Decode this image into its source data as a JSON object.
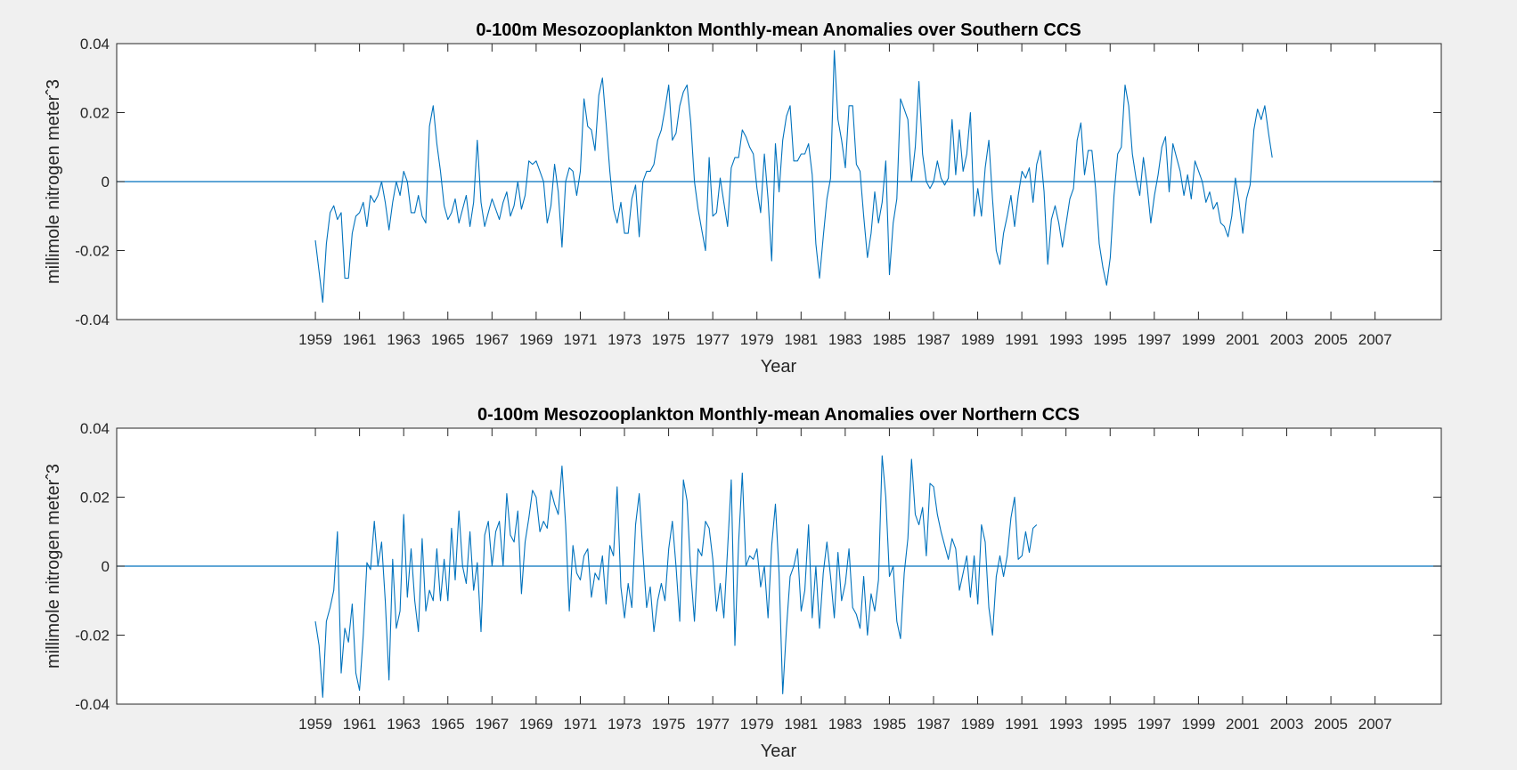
{
  "figure": {
    "background": "#f0f0f0",
    "axes_background": "#ffffff",
    "line_color": "#0072bd"
  },
  "chart_data": [
    {
      "type": "line",
      "title": "0-100m Mesozooplankton Monthly-mean Anomalies over Southern CCS",
      "xlabel": "Year",
      "ylabel": "millimole nitrogen meterˆ3",
      "xlim": [
        1950,
        2010
      ],
      "ylim": [
        -0.04,
        0.04
      ],
      "xticks": [
        1959,
        1961,
        1963,
        1965,
        1967,
        1969,
        1971,
        1973,
        1975,
        1977,
        1979,
        1981,
        1983,
        1985,
        1987,
        1989,
        1991,
        1993,
        1995,
        1997,
        1999,
        2001,
        2003,
        2005,
        2007
      ],
      "yticks": [
        -0.04,
        -0.02,
        0,
        0.02,
        0.04
      ],
      "ytick_labels": [
        "-0.04",
        "-0.02",
        "0",
        "0.02",
        "0.04"
      ],
      "reference_line": 0,
      "grid": false,
      "series": [
        {
          "x_start": 1959.0,
          "x_step": 0.1667,
          "y": [
            -0.017,
            -0.026,
            -0.035,
            -0.018,
            -0.009,
            -0.007,
            -0.011,
            -0.009,
            -0.028,
            -0.028,
            -0.015,
            -0.01,
            -0.009,
            -0.006,
            -0.013,
            -0.004,
            -0.006,
            -0.004,
            0.0,
            -0.006,
            -0.014,
            -0.006,
            0.0,
            -0.004,
            0.003,
            0.0,
            -0.009,
            -0.009,
            -0.004,
            -0.01,
            -0.012,
            0.016,
            0.022,
            0.011,
            0.003,
            -0.007,
            -0.011,
            -0.009,
            -0.005,
            -0.012,
            -0.008,
            -0.004,
            -0.013,
            -0.006,
            0.012,
            -0.006,
            -0.013,
            -0.009,
            -0.005,
            -0.008,
            -0.011,
            -0.006,
            -0.003,
            -0.01,
            -0.007,
            0.0,
            -0.008,
            -0.004,
            0.006,
            0.005,
            0.006,
            0.003,
            0.0,
            -0.012,
            -0.007,
            0.005,
            -0.003,
            -0.019,
            0.0,
            0.004,
            0.003,
            -0.004,
            0.003,
            0.024,
            0.016,
            0.015,
            0.009,
            0.025,
            0.03,
            0.017,
            0.003,
            -0.008,
            -0.012,
            -0.006,
            -0.015,
            -0.015,
            -0.005,
            -0.001,
            -0.016,
            0.0,
            0.003,
            0.003,
            0.005,
            0.012,
            0.015,
            0.021,
            0.028,
            0.012,
            0.014,
            0.022,
            0.026,
            0.028,
            0.017,
            0.0,
            -0.008,
            -0.014,
            -0.02,
            0.007,
            -0.01,
            -0.009,
            0.001,
            -0.006,
            -0.013,
            0.004,
            0.007,
            0.007,
            0.015,
            0.013,
            0.01,
            0.008,
            -0.002,
            -0.009,
            0.008,
            -0.005,
            -0.023,
            0.011,
            -0.003,
            0.012,
            0.019,
            0.022,
            0.006,
            0.006,
            0.008,
            0.008,
            0.011,
            0.002,
            -0.018,
            -0.028,
            -0.016,
            -0.005,
            0.001,
            0.038,
            0.018,
            0.012,
            0.004,
            0.022,
            0.022,
            0.005,
            0.003,
            -0.01,
            -0.022,
            -0.015,
            -0.003,
            -0.012,
            -0.006,
            0.006,
            -0.027,
            -0.012,
            -0.005,
            0.024,
            0.021,
            0.018,
            0.0,
            0.01,
            0.029,
            0.008,
            0.0,
            -0.002,
            0.0,
            0.006,
            0.001,
            -0.001,
            0.001,
            0.018,
            0.002,
            0.015,
            0.003,
            0.008,
            0.02,
            -0.01,
            -0.002,
            -0.01,
            0.004,
            0.012,
            -0.005,
            -0.02,
            -0.024,
            -0.015,
            -0.01,
            -0.004,
            -0.013,
            -0.004,
            0.003,
            0.001,
            0.004,
            -0.006,
            0.005,
            0.009,
            -0.003,
            -0.024,
            -0.011,
            -0.007,
            -0.012,
            -0.019,
            -0.012,
            -0.005,
            -0.002,
            0.012,
            0.017,
            0.002,
            0.009,
            0.009,
            -0.002,
            -0.018,
            -0.025,
            -0.03,
            -0.022,
            -0.004,
            0.008,
            0.01,
            0.028,
            0.022,
            0.008,
            0.001,
            -0.004,
            0.007,
            -0.001,
            -0.012,
            -0.004,
            0.002,
            0.01,
            0.013,
            -0.003,
            0.011,
            0.007,
            0.003,
            -0.004,
            0.002,
            -0.005,
            0.006,
            0.003,
            0.0,
            -0.006,
            -0.003,
            -0.008,
            -0.006,
            -0.012,
            -0.013,
            -0.016,
            -0.01,
            0.001,
            -0.006,
            -0.015,
            -0.005,
            -0.001,
            0.015,
            0.021,
            0.018,
            0.022,
            0.014,
            0.007
          ]
        }
      ]
    },
    {
      "type": "line",
      "title": "0-100m Mesozooplankton Monthly-mean Anomalies over Northern CCS",
      "xlabel": "Year",
      "ylabel": "millimole nitrogen meterˆ3",
      "xlim": [
        1950,
        2010
      ],
      "ylim": [
        -0.04,
        0.04
      ],
      "xticks": [
        1959,
        1961,
        1963,
        1965,
        1967,
        1969,
        1971,
        1973,
        1975,
        1977,
        1979,
        1981,
        1983,
        1985,
        1987,
        1989,
        1991,
        1993,
        1995,
        1997,
        1999,
        2001,
        2003,
        2005,
        2007
      ],
      "yticks": [
        -0.04,
        -0.02,
        0,
        0.02,
        0.04
      ],
      "ytick_labels": [
        "-0.04",
        "-0.02",
        "0",
        "0.02",
        "0.04"
      ],
      "reference_line": 0,
      "grid": false,
      "series": [
        {
          "x_start": 1959.0,
          "x_step": 0.1667,
          "y": [
            -0.016,
            -0.023,
            -0.038,
            -0.016,
            -0.012,
            -0.007,
            0.01,
            -0.031,
            -0.018,
            -0.022,
            -0.011,
            -0.031,
            -0.036,
            -0.02,
            0.001,
            -0.001,
            0.013,
            0.0,
            0.007,
            -0.01,
            -0.033,
            0.002,
            -0.018,
            -0.013,
            0.015,
            -0.009,
            0.005,
            -0.01,
            -0.019,
            0.008,
            -0.013,
            -0.007,
            -0.01,
            0.005,
            -0.01,
            0.002,
            -0.01,
            0.011,
            -0.004,
            0.016,
            0.0,
            -0.005,
            0.01,
            -0.007,
            0.001,
            -0.019,
            0.009,
            0.013,
            0.0,
            0.01,
            0.013,
            0.0,
            0.021,
            0.009,
            0.007,
            0.016,
            -0.008,
            0.007,
            0.014,
            0.022,
            0.02,
            0.01,
            0.013,
            0.011,
            0.022,
            0.018,
            0.015,
            0.029,
            0.012,
            -0.013,
            0.006,
            -0.002,
            -0.004,
            0.003,
            0.005,
            -0.009,
            -0.002,
            -0.004,
            0.003,
            -0.011,
            0.006,
            0.003,
            0.023,
            -0.006,
            -0.015,
            -0.005,
            -0.012,
            0.012,
            0.021,
            0.004,
            -0.012,
            -0.006,
            -0.019,
            -0.01,
            -0.005,
            -0.01,
            0.005,
            0.013,
            0.0,
            -0.016,
            0.025,
            0.019,
            -0.002,
            -0.016,
            0.005,
            0.003,
            0.013,
            0.011,
            0.002,
            -0.013,
            -0.005,
            -0.015,
            0.005,
            0.025,
            -0.023,
            0.007,
            0.027,
            0.0,
            0.003,
            0.002,
            0.005,
            -0.006,
            0.0,
            -0.015,
            0.006,
            0.018,
            -0.002,
            -0.037,
            -0.018,
            -0.003,
            0.0,
            0.005,
            -0.013,
            -0.007,
            0.012,
            -0.015,
            0.0,
            -0.018,
            -0.002,
            0.007,
            -0.003,
            -0.015,
            0.004,
            -0.01,
            -0.005,
            0.005,
            -0.012,
            -0.014,
            -0.018,
            -0.003,
            -0.02,
            -0.008,
            -0.013,
            -0.004,
            0.032,
            0.02,
            -0.003,
            0.0,
            -0.016,
            -0.021,
            -0.002,
            0.008,
            0.031,
            0.015,
            0.012,
            0.017,
            0.003,
            0.024,
            0.023,
            0.015,
            0.01,
            0.006,
            0.002,
            0.008,
            0.005,
            -0.007,
            -0.002,
            0.003,
            -0.009,
            0.003,
            -0.011,
            0.012,
            0.007,
            -0.012,
            -0.02,
            -0.003,
            0.003,
            -0.003,
            0.003,
            0.014,
            0.02,
            0.002,
            0.003,
            0.01,
            0.004,
            0.011,
            0.012
          ]
        }
      ]
    }
  ]
}
